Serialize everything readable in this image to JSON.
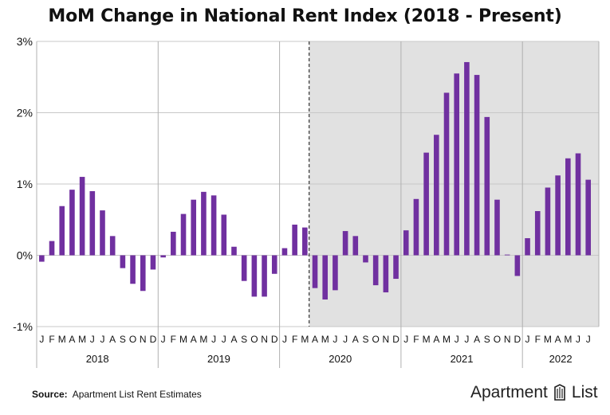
{
  "title": "MoM Change in National Rent Index (2018 - Present)",
  "source": {
    "label": "Source:",
    "text": "Apartment List Rent Estimates"
  },
  "brand": {
    "left": "Apartment",
    "right": "List"
  },
  "colors": {
    "bar": "#7030a0",
    "shade": "#e1e1e1",
    "grid": "#c8c8c8",
    "divider": "#b0b0b0"
  },
  "chart_data": {
    "type": "bar",
    "title": "MoM Change in National Rent Index (2018 - Present)",
    "xlabel": "",
    "ylabel": "",
    "ylim": [
      -1,
      3
    ],
    "yticks": [
      "-1%",
      "0%",
      "1%",
      "2%",
      "3%"
    ],
    "grid": true,
    "shaded_region": {
      "from": "2020-04",
      "to": "end"
    },
    "dashed_line_at": "2020-04",
    "years": [
      "2018",
      "2019",
      "2020",
      "2021",
      "2022"
    ],
    "months": [
      "J",
      "F",
      "M",
      "A",
      "M",
      "J",
      "J",
      "A",
      "S",
      "O",
      "N",
      "D"
    ],
    "series": [
      {
        "values": [
          -0.09,
          0.2,
          0.69,
          0.92,
          1.1,
          0.9,
          0.63,
          0.27,
          -0.18,
          -0.4,
          -0.5,
          -0.2,
          -0.03,
          0.33,
          0.58,
          0.78,
          0.89,
          0.84,
          0.57,
          0.12,
          -0.36,
          -0.58,
          -0.58,
          -0.26,
          0.1,
          0.43,
          0.39,
          -0.46,
          -0.62,
          -0.49,
          0.34,
          0.27,
          -0.1,
          -0.42,
          -0.52,
          -0.33,
          0.35,
          0.79,
          1.44,
          1.69,
          2.28,
          2.55,
          2.71,
          2.53,
          1.94,
          0.78,
          0.01,
          -0.29,
          0.24,
          0.62,
          0.95,
          1.12,
          1.36,
          1.43,
          1.06
        ]
      }
    ]
  }
}
